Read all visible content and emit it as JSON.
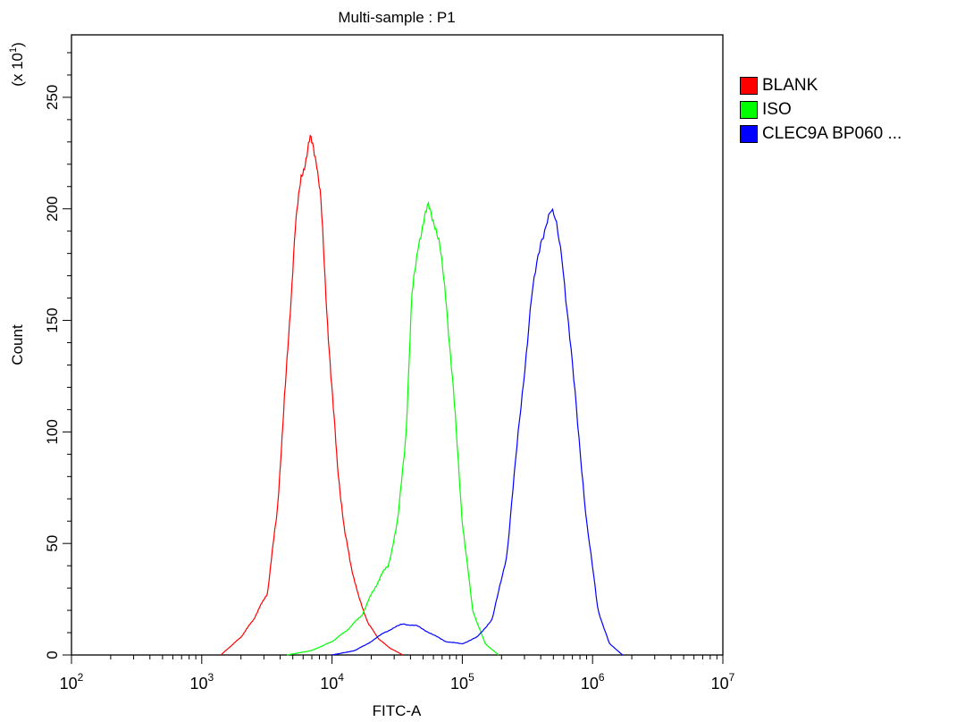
{
  "chart_data": {
    "type": "line",
    "title": "Multi-sample : P1",
    "xlabel": "FITC-A",
    "ylabel": "Count",
    "y_multiplier": "(x 10",
    "y_multiplier_exp": "1",
    "y_multiplier_close": ")",
    "x_scale": "log",
    "xlim": [
      100,
      10000000
    ],
    "ylim": [
      0,
      278
    ],
    "x_ticks": [
      {
        "base": "10",
        "exp": "2",
        "value": 100
      },
      {
        "base": "10",
        "exp": "3",
        "value": 1000
      },
      {
        "base": "10",
        "exp": "4",
        "value": 10000
      },
      {
        "base": "10",
        "exp": "5",
        "value": 100000
      },
      {
        "base": "10",
        "exp": "6",
        "value": 1000000
      },
      {
        "base": "10",
        "exp": "7",
        "value": 10000000
      }
    ],
    "y_ticks": [
      "0",
      "50",
      "100",
      "150",
      "200",
      "250"
    ],
    "legend_position": "right",
    "series": [
      {
        "name": "BLANK",
        "color": "#ff0000",
        "x": [
          1400,
          2000,
          2500,
          3200,
          3800,
          4500,
          5200,
          5800,
          6300,
          6800,
          7100,
          7600,
          8200,
          9000,
          10000,
          11000,
          12500,
          14000,
          16000,
          19000,
          23000,
          28000,
          35000
        ],
        "y": [
          0,
          8,
          16,
          28,
          65,
          130,
          190,
          215,
          222,
          231,
          229,
          222,
          204,
          160,
          118,
          85,
          55,
          40,
          26,
          14,
          7,
          3,
          0
        ]
      },
      {
        "name": "ISO",
        "color": "#00ff00",
        "x": [
          4500,
          7000,
          10000,
          13000,
          17000,
          20000,
          24000,
          27000,
          32000,
          37000,
          41000,
          46000,
          51000,
          55000,
          58000,
          62000,
          67000,
          75000,
          85000,
          100000,
          120000,
          150000,
          190000
        ],
        "y": [
          0,
          2,
          6,
          11,
          18,
          27,
          36,
          40,
          60,
          100,
          160,
          185,
          195,
          201,
          198,
          193,
          183,
          160,
          120,
          60,
          20,
          5,
          0
        ]
      },
      {
        "name": "CLEC9A BP060 ...",
        "color": "#0000ff",
        "x": [
          10000,
          15000,
          20000,
          25000,
          35000,
          45000,
          60000,
          75000,
          100000,
          130000,
          170000,
          220000,
          280000,
          340000,
          400000,
          450000,
          480000,
          520000,
          580000,
          650000,
          750000,
          900000,
          1100000,
          1350000,
          1700000
        ],
        "y": [
          0,
          2,
          6,
          10,
          14,
          13,
          9,
          6,
          5,
          8,
          16,
          45,
          110,
          160,
          185,
          196,
          199,
          194,
          180,
          150,
          110,
          60,
          20,
          5,
          0
        ]
      }
    ]
  }
}
